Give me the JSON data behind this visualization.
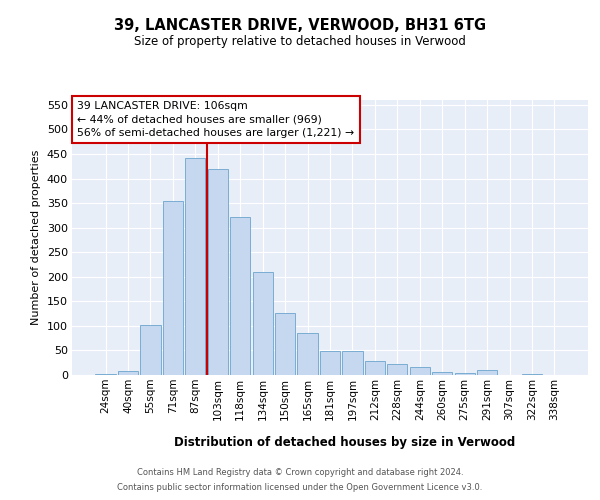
{
  "title_line1": "39, LANCASTER DRIVE, VERWOOD, BH31 6TG",
  "title_line2": "Size of property relative to detached houses in Verwood",
  "xlabel": "Distribution of detached houses by size in Verwood",
  "ylabel": "Number of detached properties",
  "categories": [
    "24sqm",
    "40sqm",
    "55sqm",
    "71sqm",
    "87sqm",
    "103sqm",
    "118sqm",
    "134sqm",
    "150sqm",
    "165sqm",
    "181sqm",
    "197sqm",
    "212sqm",
    "228sqm",
    "244sqm",
    "260sqm",
    "275sqm",
    "291sqm",
    "307sqm",
    "322sqm",
    "338sqm"
  ],
  "values": [
    3,
    8,
    102,
    354,
    442,
    420,
    321,
    210,
    127,
    85,
    49,
    48,
    28,
    22,
    17,
    7,
    5,
    10,
    1,
    2,
    1
  ],
  "bar_color": "#c5d8f0",
  "bar_edge_color": "#7aadd4",
  "vline_index": 4.5,
  "vline_color": "#cc0000",
  "annotation_text": "39 LANCASTER DRIVE: 106sqm\n← 44% of detached houses are smaller (969)\n56% of semi-detached houses are larger (1,221) →",
  "annotation_box_facecolor": "#ffffff",
  "annotation_box_edgecolor": "#cc0000",
  "ylim_max": 560,
  "yticks": [
    0,
    50,
    100,
    150,
    200,
    250,
    300,
    350,
    400,
    450,
    500,
    550
  ],
  "plot_bg_color": "#e8eef8",
  "grid_color": "#ffffff",
  "footer_line1": "Contains HM Land Registry data © Crown copyright and database right 2024.",
  "footer_line2": "Contains public sector information licensed under the Open Government Licence v3.0."
}
